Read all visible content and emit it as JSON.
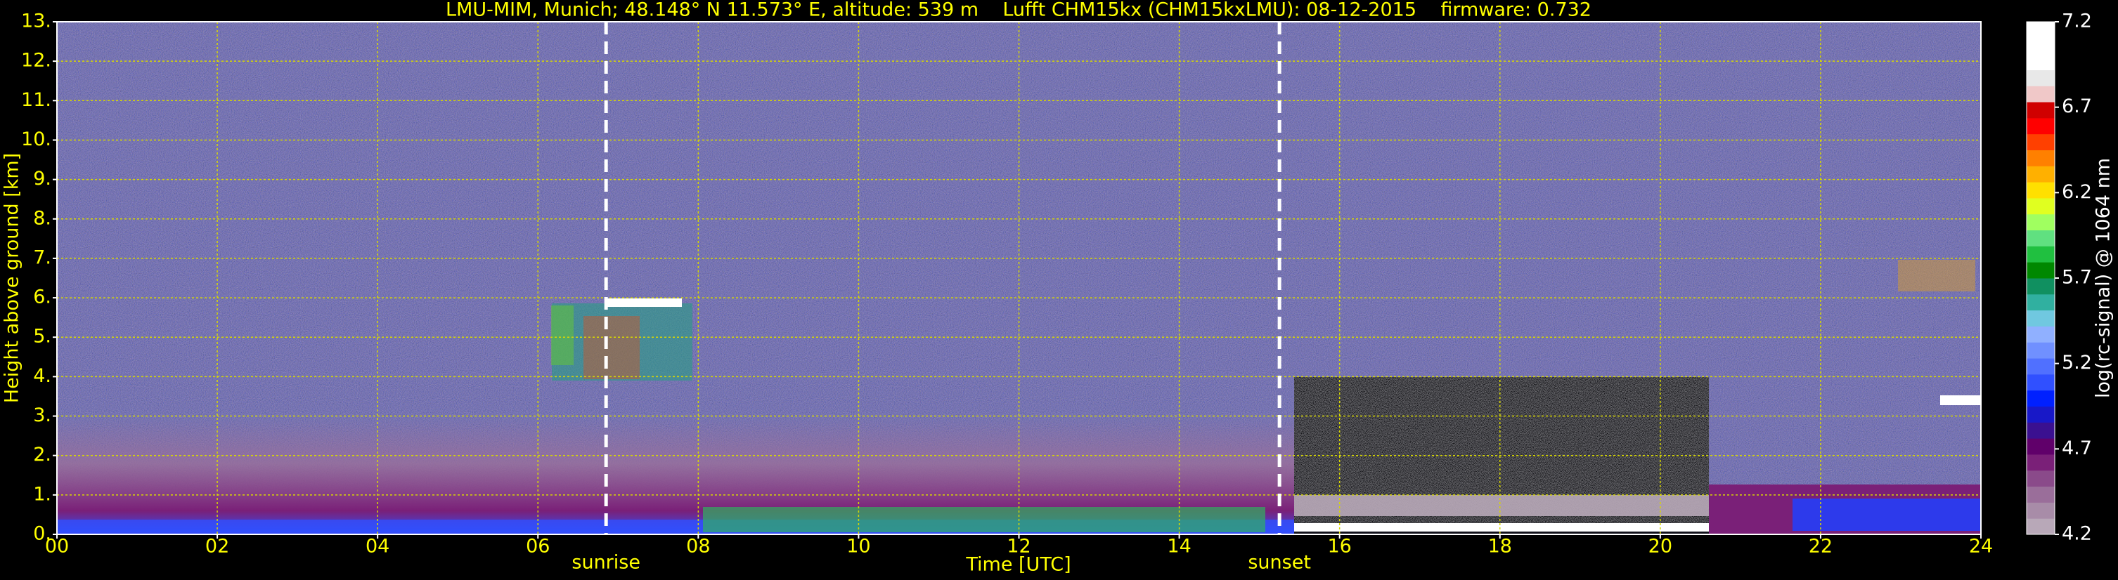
{
  "chart_data": {
    "type": "heatmap",
    "title": "LMU-MIM, Munich; 48.148° N 11.573° E, altitude: 539 m    Lufft CHM15kx (CHM15kxLMU): 08-12-2015    firmware: 0.732",
    "xlabel": "Time [UTC]",
    "ylabel": "Height above ground [km]",
    "xlim": [
      0,
      24
    ],
    "xticks": [
      {
        "value": 0,
        "label": "00"
      },
      {
        "value": 2,
        "label": "02"
      },
      {
        "value": 4,
        "label": "04"
      },
      {
        "value": 6,
        "label": "06"
      },
      {
        "value": 8,
        "label": "08"
      },
      10,
      12,
      14,
      16,
      18,
      20,
      22,
      24
    ],
    "ylim": [
      0,
      13
    ],
    "yticks": [
      {
        "value": 0,
        "label": "0."
      },
      {
        "value": 1,
        "label": "1."
      },
      {
        "value": 2,
        "label": "2."
      },
      {
        "value": 3,
        "label": "3."
      },
      {
        "value": 4,
        "label": "4."
      },
      {
        "value": 5,
        "label": "5."
      },
      {
        "value": 6,
        "label": "6."
      },
      {
        "value": 7,
        "label": "7."
      },
      {
        "value": 8,
        "label": "8."
      },
      {
        "value": 9,
        "label": "9."
      },
      {
        "value": 10,
        "label": "10."
      },
      {
        "value": 11,
        "label": "11."
      },
      {
        "value": 12,
        "label": "12."
      },
      {
        "value": 13,
        "label": "13."
      }
    ],
    "grid": true,
    "markers": [
      {
        "x": 6.85,
        "label": "sunrise"
      },
      {
        "x": 15.25,
        "label": "sunset"
      }
    ],
    "colorbar": {
      "label": "log(rc-signal) @ 1064 nm",
      "lim": [
        4.2,
        7.2
      ],
      "ticks": [
        4.2,
        4.7,
        5.2,
        5.7,
        6.2,
        6.7,
        7.2
      ],
      "colors": [
        "#b8a8b8",
        "#a88ca8",
        "#9a6e9a",
        "#8a4a8a",
        "#7a2078",
        "#60006a",
        "#3a1090",
        "#1818c8",
        "#0020ff",
        "#3050ff",
        "#5070ff",
        "#7090ff",
        "#90b0ff",
        "#70c8e0",
        "#30b0a0",
        "#109060",
        "#008800",
        "#20c040",
        "#60e080",
        "#a0ff60",
        "#e0ff20",
        "#ffe000",
        "#ffb000",
        "#ff8000",
        "#ff4000",
        "#ff0000",
        "#d00000",
        "#f0c8c8",
        "#e8e8e8",
        "#ffffff",
        "#ffffff",
        "#ffffff"
      ]
    }
  }
}
